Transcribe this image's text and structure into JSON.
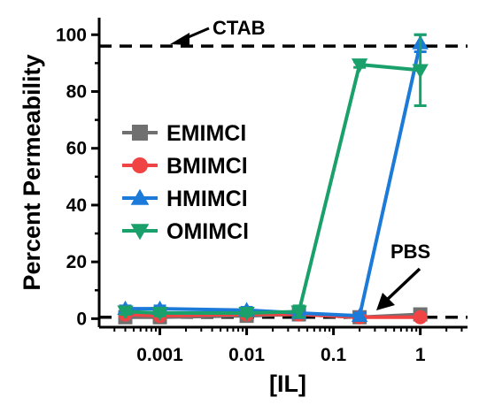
{
  "chart_data": {
    "type": "line",
    "xlabel": "[IL]",
    "ylabel": "Percent Permeability",
    "xscale": "log",
    "xlim": [
      0.0002,
      3.5
    ],
    "ylim": [
      -3,
      106
    ],
    "grid": false,
    "legend_position": "left-center",
    "x_ticks": [
      {
        "value": 0.001,
        "label": "0.001"
      },
      {
        "value": 0.01,
        "label": "0.01"
      },
      {
        "value": 0.1,
        "label": "0.1"
      },
      {
        "value": 1,
        "label": "1"
      }
    ],
    "y_ticks": [
      {
        "value": 0,
        "label": "0"
      },
      {
        "value": 20,
        "label": "20"
      },
      {
        "value": 40,
        "label": "40"
      },
      {
        "value": 60,
        "label": "60"
      },
      {
        "value": 80,
        "label": "80"
      },
      {
        "value": 100,
        "label": "100"
      }
    ],
    "reference_lines": [
      {
        "label": "CTAB",
        "y": 96
      },
      {
        "label": "PBS",
        "y": 0.5
      }
    ],
    "series": [
      {
        "name": "EMIMCl",
        "color": "#707070",
        "marker": "square",
        "x": [
          0.0004,
          0.001,
          0.01,
          0.04,
          0.2,
          1
        ],
        "y": [
          0.5,
          0.5,
          1.0,
          1.5,
          0.5,
          1.5
        ]
      },
      {
        "name": "BMIMCl",
        "color": "#f04444",
        "marker": "circle",
        "x": [
          0.0004,
          0.001,
          0.01,
          0.04,
          0.2,
          1
        ],
        "y": [
          1.5,
          1.0,
          1.5,
          1.5,
          0.5,
          0.5
        ]
      },
      {
        "name": "HMIMCl",
        "color": "#1c7ad8",
        "marker": "triangle-up",
        "x": [
          0.0004,
          0.001,
          0.01,
          0.04,
          0.2,
          1
        ],
        "y": [
          3.5,
          3.5,
          3.0,
          2.0,
          1.0,
          97
        ],
        "err": [
          1.0,
          1.0,
          1.0,
          1.0,
          1.0,
          3.0
        ]
      },
      {
        "name": "OMIMCl",
        "color": "#1aa06a",
        "marker": "triangle-down",
        "x": [
          0.0004,
          0.001,
          0.01,
          0.04,
          0.2,
          1
        ],
        "y": [
          2.5,
          2.0,
          2.0,
          2.5,
          89.5,
          87.5
        ],
        "err": [
          1.0,
          1.0,
          1.0,
          2.0,
          1.0,
          12.5
        ]
      }
    ]
  }
}
